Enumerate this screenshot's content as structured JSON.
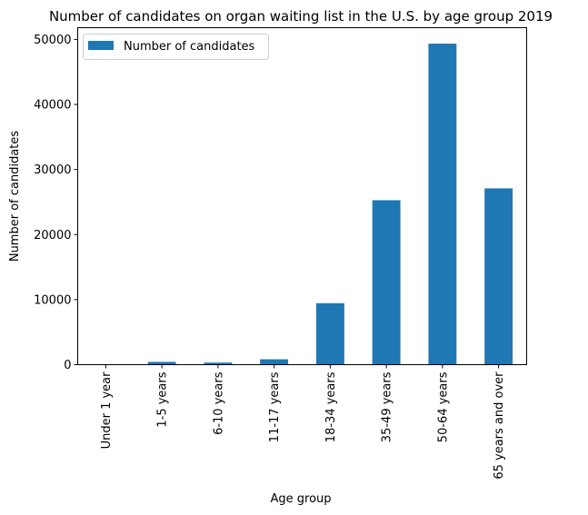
{
  "chart_data": {
    "type": "bar",
    "title": "Number of candidates on organ waiting list in the U.S. by age group 2019",
    "xlabel": "Age group",
    "ylabel": "Number of candidates",
    "categories": [
      "Under 1 year",
      "1-5 years",
      "6-10 years",
      "11-17 years",
      "18-34 years",
      "35-49 years",
      "50-64 years",
      "65 years and over"
    ],
    "series": [
      {
        "name": "Number of candidates",
        "color": "#1f77b4",
        "values": [
          60,
          430,
          320,
          830,
          9450,
          25280,
          49350,
          27100
        ]
      }
    ],
    "ylim": [
      0,
      51800
    ],
    "yticks": [
      0,
      10000,
      20000,
      30000,
      40000,
      50000
    ],
    "grid": false,
    "legend_position": "top-left"
  }
}
